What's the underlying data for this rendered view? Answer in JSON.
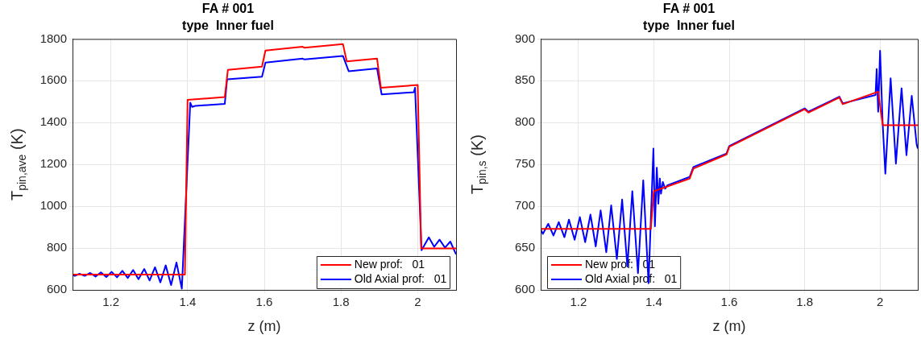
{
  "chart_data": [
    {
      "type": "line",
      "title": "FA # 001",
      "subtitle": "type  Inner fuel",
      "xlabel": "z (m)",
      "ylabel": "T$_{pin,ave}$ (K)",
      "xlim": [
        1.1,
        2.1
      ],
      "xticks": [
        1.2,
        1.4,
        1.6,
        1.8,
        2
      ],
      "ylim": [
        600,
        1800
      ],
      "yticks": [
        600,
        800,
        1000,
        1200,
        1400,
        1600,
        1800
      ],
      "grid": true,
      "legend": "bottom right",
      "marker": "none",
      "line_style": "solid",
      "series": [
        {
          "name": "New prof:   01",
          "color": "#ff0000",
          "x": [
            1.1,
            1.393,
            1.4,
            1.497,
            1.505,
            1.594,
            1.603,
            1.7,
            1.705,
            1.805,
            1.815,
            1.894,
            1.904,
            2.0,
            2.009,
            2.1
          ],
          "values": [
            673,
            673,
            1509,
            1522,
            1652,
            1668,
            1745,
            1763,
            1758,
            1776,
            1693,
            1706,
            1567,
            1580,
            798,
            798
          ]
        },
        {
          "name": "Old Axial prof:   01",
          "color": "#0000ff",
          "x": [
            1.1,
            1.106,
            1.118,
            1.132,
            1.146,
            1.16,
            1.174,
            1.188,
            1.202,
            1.216,
            1.23,
            1.244,
            1.258,
            1.272,
            1.287,
            1.301,
            1.315,
            1.329,
            1.343,
            1.357,
            1.371,
            1.385,
            1.407,
            1.412,
            1.42,
            1.497,
            1.503,
            1.594,
            1.603,
            1.7,
            1.705,
            1.805,
            1.82,
            1.894,
            1.906,
            1.99,
            1.993,
            2.01,
            2.029,
            2.043,
            2.057,
            2.071,
            2.085,
            2.1
          ],
          "values": [
            672,
            667,
            677,
            667,
            681,
            664,
            684,
            662,
            686,
            660,
            691,
            657,
            695,
            651,
            700,
            645,
            708,
            636,
            717,
            623,
            731,
            606,
            1495,
            1475,
            1480,
            1490,
            1607,
            1620,
            1687,
            1706,
            1702,
            1719,
            1646,
            1659,
            1535,
            1545,
            1567,
            790,
            851,
            806,
            840,
            802,
            831,
            770
          ]
        }
      ]
    },
    {
      "type": "line",
      "title": "FA # 001",
      "subtitle": "type  Inner fuel",
      "xlabel": "z (m)",
      "ylabel": "T$_{pin,s}$ (K)",
      "xlim": [
        1.1,
        2.1
      ],
      "xticks": [
        1.2,
        1.4,
        1.6,
        1.8,
        2
      ],
      "ylim": [
        600,
        900
      ],
      "yticks": [
        600,
        650,
        700,
        750,
        800,
        850,
        900
      ],
      "grid": true,
      "legend": "bottom left",
      "marker": "none",
      "line_style": "solid",
      "series": [
        {
          "name": "New prof:   01",
          "color": "#ff0000",
          "x": [
            1.1,
            1.392,
            1.4,
            1.495,
            1.505,
            1.593,
            1.6,
            1.8,
            1.81,
            1.892,
            1.901,
            1.995,
            2.007,
            2.1
          ],
          "values": [
            673,
            673,
            718,
            733,
            745,
            762,
            771,
            816,
            812,
            830,
            822,
            837,
            797,
            797
          ]
        },
        {
          "name": "Old Axial prof:   01",
          "color": "#0000ff",
          "x": [
            1.1,
            1.106,
            1.12,
            1.134,
            1.148,
            1.163,
            1.175,
            1.19,
            1.204,
            1.218,
            1.232,
            1.246,
            1.259,
            1.274,
            1.287,
            1.302,
            1.316,
            1.33,
            1.343,
            1.358,
            1.372,
            1.386,
            1.399,
            1.403,
            1.408,
            1.412,
            1.416,
            1.419,
            1.424,
            1.43,
            1.436,
            1.495,
            1.505,
            1.593,
            1.6,
            1.8,
            1.81,
            1.892,
            1.901,
            1.988,
            1.991,
            1.995,
            2.0,
            2.007,
            2.014,
            2.028,
            2.042,
            2.057,
            2.07,
            2.084,
            2.097,
            2.1
          ],
          "values": [
            672,
            667,
            679,
            665,
            681,
            663,
            684,
            660,
            687,
            657,
            690,
            652,
            695,
            645,
            701,
            637,
            708,
            628,
            718,
            620,
            731,
            608,
            769,
            676,
            746,
            703,
            733,
            715,
            729,
            721,
            725,
            735,
            747,
            763,
            772,
            817,
            813,
            831,
            823,
            833,
            864,
            813,
            886,
            798,
            739,
            853,
            751,
            841,
            761,
            832,
            774,
            769
          ]
        }
      ]
    }
  ]
}
